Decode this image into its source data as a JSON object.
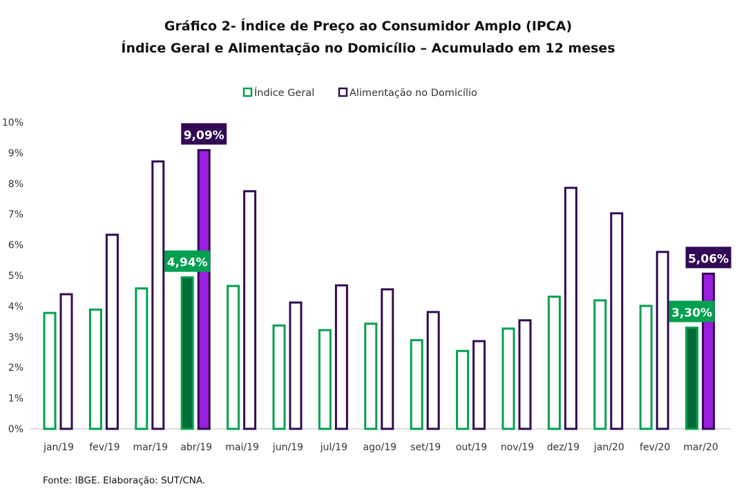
{
  "chart_data": {
    "type": "bar",
    "title": "Gráfico 2- Índice de Preço ao Consumidor Amplo (IPCA)",
    "subtitle": "Índice Geral e Alimentação no Domicílio – Acumulado em 12 meses",
    "categories": [
      "jan/19",
      "fev/19",
      "mar/19",
      "abr/19",
      "mai/19",
      "jun/19",
      "jul/19",
      "ago/19",
      "set/19",
      "out/19",
      "nov/19",
      "dez/19",
      "jan/20",
      "fev/20",
      "mar/20"
    ],
    "series": [
      {
        "name": "Índice Geral",
        "values": [
          3.78,
          3.89,
          4.58,
          4.94,
          4.66,
          3.37,
          3.22,
          3.43,
          2.89,
          2.54,
          3.27,
          4.31,
          4.19,
          4.01,
          3.3
        ],
        "outline": "#00a04f",
        "fill_highlight": "#006b34",
        "label_bg": "#00a04f"
      },
      {
        "name": "Alimentação no Domicílio",
        "values": [
          4.39,
          6.33,
          8.72,
          9.09,
          7.75,
          4.12,
          4.68,
          4.55,
          3.81,
          2.86,
          3.54,
          7.86,
          7.03,
          5.77,
          5.06
        ],
        "outline": "#300a50",
        "fill_highlight": "#9a1ee0",
        "label_bg": "#330a55"
      }
    ],
    "highlighted_categories": [
      "abr/19",
      "mar/20"
    ],
    "data_labels": [
      {
        "category": "abr/19",
        "series": 0,
        "text": "4,94%"
      },
      {
        "category": "abr/19",
        "series": 1,
        "text": "9,09%"
      },
      {
        "category": "mar/20",
        "series": 0,
        "text": "3,30%"
      },
      {
        "category": "mar/20",
        "series": 1,
        "text": "5,06%"
      }
    ],
    "ylim": [
      0,
      10
    ],
    "yticks": [
      "0%",
      "1%",
      "2%",
      "3%",
      "4%",
      "5%",
      "6%",
      "7%",
      "8%",
      "9%",
      "10%"
    ],
    "grid": false,
    "legend": "top-center"
  },
  "source": "Fonte: IBGE. Elaboração: SUT/CNA."
}
